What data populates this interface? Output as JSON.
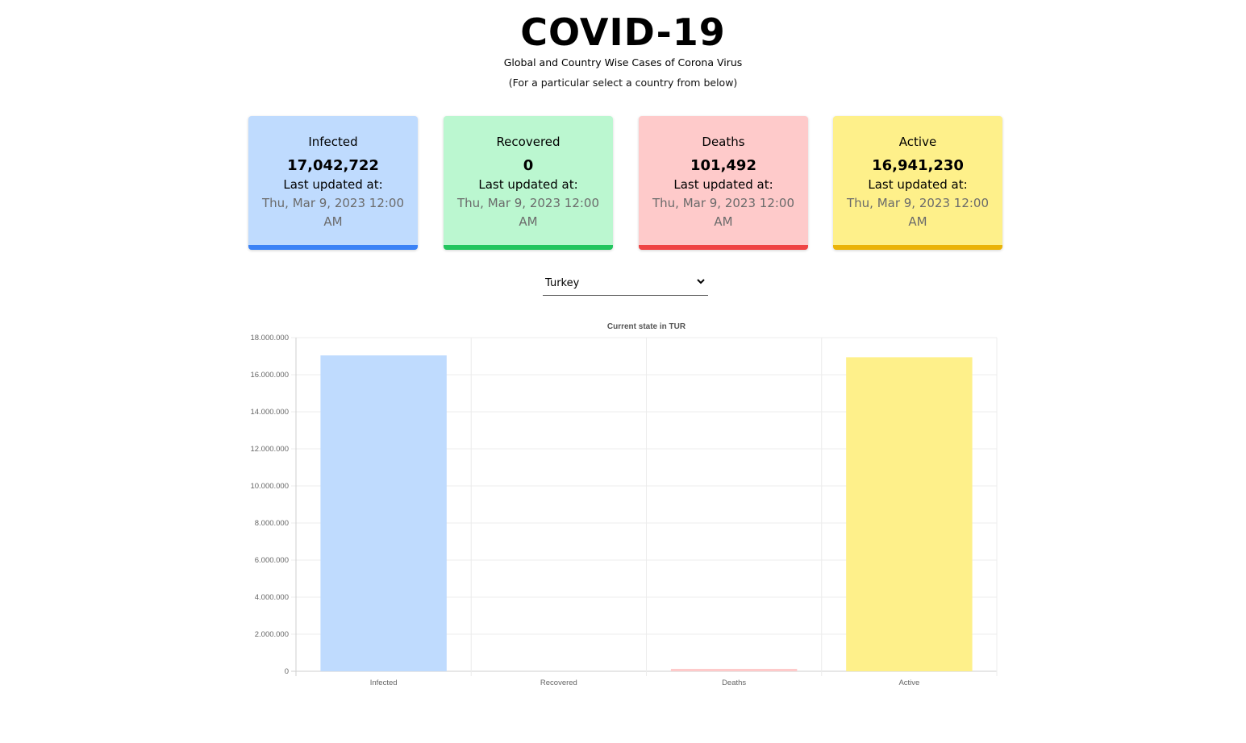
{
  "header": {
    "title": "COVID-19",
    "subtitle": "Global and Country Wise Cases of Corona Virus",
    "note": "(For a particular select a country from below)"
  },
  "cards": [
    {
      "label": "Infected",
      "value": "17,042,722",
      "updated_label": "Last updated at:",
      "date": "Thu, Mar 9, 2023 12:00 AM",
      "color": "#bfdbfe",
      "accent": "#3b82f6"
    },
    {
      "label": "Recovered",
      "value": "0",
      "updated_label": "Last updated at:",
      "date": "Thu, Mar 9, 2023 12:00 AM",
      "color": "#bbf7d0",
      "accent": "#22c55e"
    },
    {
      "label": "Deaths",
      "value": "101,492",
      "updated_label": "Last updated at:",
      "date": "Thu, Mar 9, 2023 12:00 AM",
      "color": "#fecaca",
      "accent": "#ef4444"
    },
    {
      "label": "Active",
      "value": "16,941,230",
      "updated_label": "Last updated at:",
      "date": "Thu, Mar 9, 2023 12:00 AM",
      "color": "#fef08a",
      "accent": "#eab308"
    }
  ],
  "country_select": {
    "selected": "Turkey",
    "icon": "chevron-down-icon"
  },
  "chart_data": {
    "type": "bar",
    "title": "Current state in TUR",
    "categories": [
      "Infected",
      "Recovered",
      "Deaths",
      "Active"
    ],
    "values": [
      17042722,
      0,
      101492,
      16941230
    ],
    "colors": [
      "#bfdbfe",
      "#bbf7d0",
      "#fecaca",
      "#fef08a"
    ],
    "ylim": [
      0,
      18000000
    ],
    "yticks": [
      0,
      2000000,
      4000000,
      6000000,
      8000000,
      10000000,
      12000000,
      14000000,
      16000000,
      18000000
    ],
    "ytick_labels": [
      "0",
      "2.000.000",
      "4.000.000",
      "6.000.000",
      "8.000.000",
      "10.000.000",
      "12.000.000",
      "14.000.000",
      "16.000.000",
      "18.000.000"
    ],
    "grid": true,
    "legend": "none"
  }
}
